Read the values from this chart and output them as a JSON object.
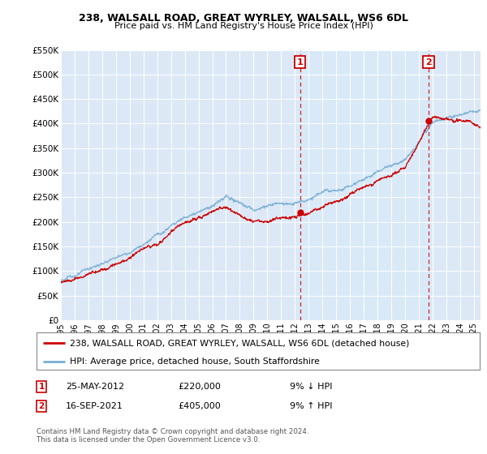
{
  "title": "238, WALSALL ROAD, GREAT WYRLEY, WALSALL, WS6 6DL",
  "subtitle": "Price paid vs. HM Land Registry's House Price Index (HPI)",
  "background_color": "#ffffff",
  "plot_bg_color": "#dce8f5",
  "grid_color": "#ffffff",
  "ylim": [
    0,
    550000
  ],
  "yticks": [
    0,
    50000,
    100000,
    150000,
    200000,
    250000,
    300000,
    350000,
    400000,
    450000,
    500000,
    550000
  ],
  "ytick_labels": [
    "£0",
    "£50K",
    "£100K",
    "£150K",
    "£200K",
    "£250K",
    "£300K",
    "£350K",
    "£400K",
    "£450K",
    "£500K",
    "£550K"
  ],
  "sale1_date_num": 2012.38,
  "sale1_price": 220000,
  "sale1_label": "1",
  "sale2_date_num": 2021.71,
  "sale2_price": 405000,
  "sale2_label": "2",
  "hpi_color": "#7aaed4",
  "price_color": "#cc0000",
  "dashed_color": "#cc0000",
  "highlight_color": "#d8eaf8",
  "legend_label1": "238, WALSALL ROAD, GREAT WYRLEY, WALSALL, WS6 6DL (detached house)",
  "legend_label2": "HPI: Average price, detached house, South Staffordshire",
  "annotation1_text": "25-MAY-2012",
  "annotation1_price": "£220,000",
  "annotation1_hpi": "9% ↓ HPI",
  "annotation2_text": "16-SEP-2021",
  "annotation2_price": "£405,000",
  "annotation2_hpi": "9% ↑ HPI",
  "footnote": "Contains HM Land Registry data © Crown copyright and database right 2024.\nThis data is licensed under the Open Government Licence v3.0.",
  "xstart": 1995.0,
  "xend": 2025.5,
  "xticks": [
    1995,
    1996,
    1997,
    1998,
    1999,
    2000,
    2001,
    2002,
    2003,
    2004,
    2005,
    2006,
    2007,
    2008,
    2009,
    2010,
    2011,
    2012,
    2013,
    2014,
    2015,
    2016,
    2017,
    2018,
    2019,
    2020,
    2021,
    2022,
    2023,
    2024,
    2025
  ]
}
